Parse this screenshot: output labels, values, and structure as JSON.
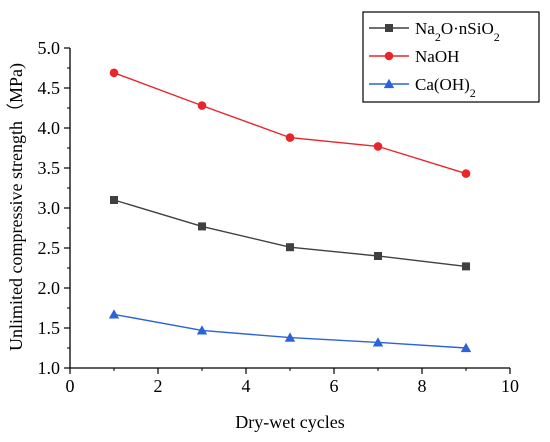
{
  "chart_data": {
    "type": "line",
    "xlabel": "Dry-wet cycles",
    "ylabel": "Unlimited compressive strength（MPa)",
    "xlim": [
      0,
      10
    ],
    "ylim": [
      1.0,
      5.0
    ],
    "x_ticks": [
      "0",
      "2",
      "4",
      "6",
      "8",
      "10"
    ],
    "y_ticks": [
      "1.0",
      "1.5",
      "2.0",
      "2.5",
      "3.0",
      "3.5",
      "4.0",
      "4.5",
      "5.0"
    ],
    "x_tick_values": [
      0,
      2,
      4,
      6,
      8,
      10
    ],
    "y_tick_values": [
      1.0,
      1.5,
      2.0,
      2.5,
      3.0,
      3.5,
      4.0,
      4.5,
      5.0
    ],
    "legend_position": "top-right",
    "grid": false,
    "x": [
      1,
      3,
      5,
      7,
      9
    ],
    "series": [
      {
        "name": "Na2O·nSiO2",
        "name_parts": [
          "Na",
          "2",
          "O·nSiO",
          "2"
        ],
        "marker": "square",
        "color": "#404040",
        "values": [
          3.1,
          2.77,
          2.51,
          2.4,
          2.27
        ]
      },
      {
        "name": "NaOH",
        "name_parts": [
          "NaOH"
        ],
        "marker": "circle",
        "color": "#e8262a",
        "values": [
          4.69,
          4.28,
          3.88,
          3.77,
          3.43
        ]
      },
      {
        "name": "Ca(OH)2",
        "name_parts": [
          "Ca(OH)",
          "2"
        ],
        "marker": "triangle",
        "color": "#2b63d9",
        "values": [
          1.67,
          1.47,
          1.38,
          1.32,
          1.25
        ]
      }
    ]
  }
}
